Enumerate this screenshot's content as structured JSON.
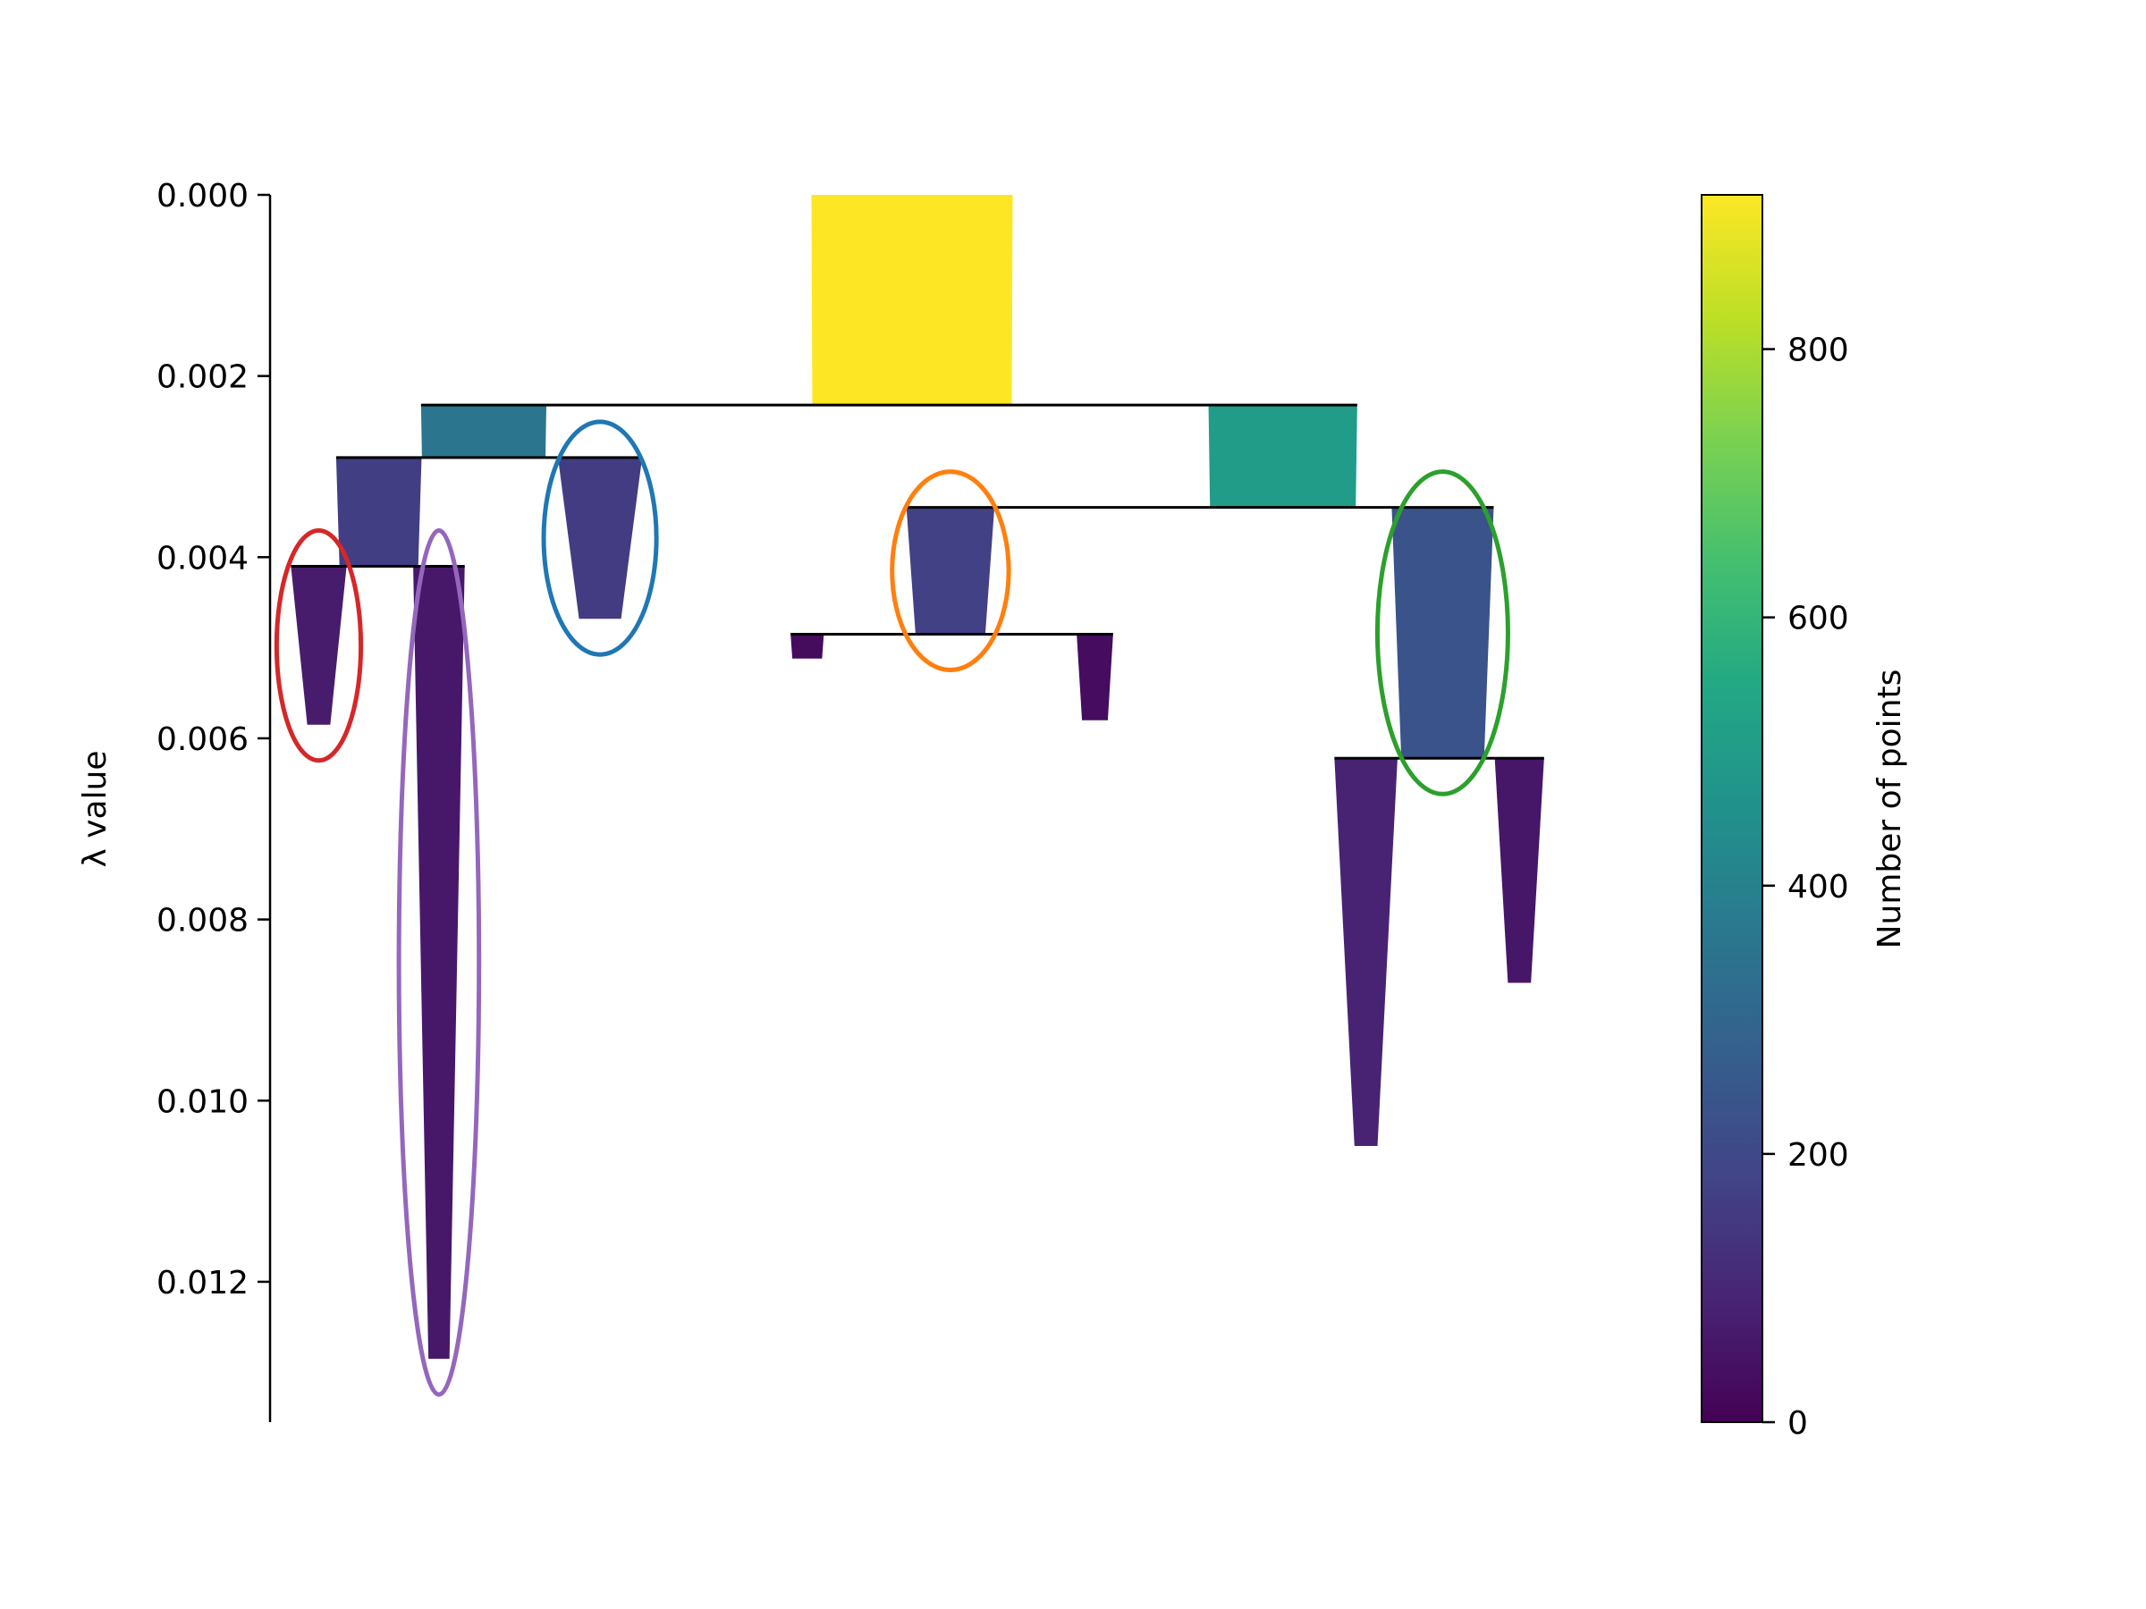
{
  "chart_data": {
    "type": "other",
    "subtype": "condensed-cluster-tree",
    "ylabel": "λ value",
    "y_inverted": true,
    "ylim": [
      0.0,
      0.01355
    ],
    "yticks": [
      0.0,
      0.002,
      0.004,
      0.006,
      0.008,
      0.01,
      0.012
    ],
    "ytick_labels": [
      "0.000",
      "0.002",
      "0.004",
      "0.006",
      "0.008",
      "0.010",
      "0.012"
    ],
    "colorbar": {
      "label": "Number of points",
      "range": [
        0,
        915
      ],
      "ticks": [
        0,
        200,
        400,
        600,
        800
      ],
      "tick_labels": [
        "0",
        "200",
        "400",
        "600",
        "800"
      ],
      "colormap": "viridis"
    },
    "clusters": [
      {
        "id": "root",
        "x": 0.5,
        "lambda_birth": 0.0,
        "lambda_death": 0.00232,
        "size_start": 915,
        "size_end": 900
      },
      {
        "id": "A",
        "x": 0.165,
        "lambda_birth": 0.00232,
        "lambda_death": 0.0029,
        "size_start": 355,
        "size_end": 345
      },
      {
        "id": "B",
        "x": 0.79,
        "lambda_birth": 0.00232,
        "lambda_death": 0.00345,
        "size_start": 500,
        "size_end": 480
      },
      {
        "id": "A1",
        "x": 0.083,
        "lambda_birth": 0.0029,
        "lambda_death": 0.0041,
        "size_start": 165,
        "size_end": 140
      },
      {
        "id": "A2",
        "x": 0.256,
        "lambda_birth": 0.0029,
        "lambda_death": 0.00468,
        "size_start": 160,
        "size_end": 40
      },
      {
        "id": "B1",
        "x": 0.53,
        "lambda_birth": 0.00345,
        "lambda_death": 0.00485,
        "size_start": 175,
        "size_end": 110
      },
      {
        "id": "B2",
        "x": 0.915,
        "lambda_birth": 0.00345,
        "lambda_death": 0.00622,
        "size_start": 235,
        "size_end": 155
      },
      {
        "id": "A1a",
        "x": 0.036,
        "lambda_birth": 0.0041,
        "lambda_death": 0.00585,
        "size_start": 70,
        "size_end": 12
      },
      {
        "id": "A1b",
        "x": 0.13,
        "lambda_birth": 0.0041,
        "lambda_death": 0.01285,
        "size_start": 60,
        "size_end": 10
      },
      {
        "id": "B1a",
        "x": 0.418,
        "lambda_birth": 0.00485,
        "lambda_death": 0.00512,
        "size_start": 25,
        "size_end": 20
      },
      {
        "id": "B1b",
        "x": 0.643,
        "lambda_birth": 0.00485,
        "lambda_death": 0.0058,
        "size_start": 30,
        "size_end": 15
      },
      {
        "id": "B2a",
        "x": 0.855,
        "lambda_birth": 0.00622,
        "lambda_death": 0.0105,
        "size_start": 90,
        "size_end": 12
      },
      {
        "id": "B2b",
        "x": 0.975,
        "lambda_birth": 0.00622,
        "lambda_death": 0.0087,
        "size_start": 55,
        "size_end": 12
      }
    ],
    "highlighted_clusters": [
      {
        "cluster": "A1a",
        "color": "#d62728"
      },
      {
        "cluster": "A1b",
        "color": "#9467bd"
      },
      {
        "cluster": "A2",
        "color": "#1f77b4"
      },
      {
        "cluster": "B1",
        "color": "#ff7f0e"
      },
      {
        "cluster": "B2",
        "color": "#2ca02c"
      }
    ]
  }
}
